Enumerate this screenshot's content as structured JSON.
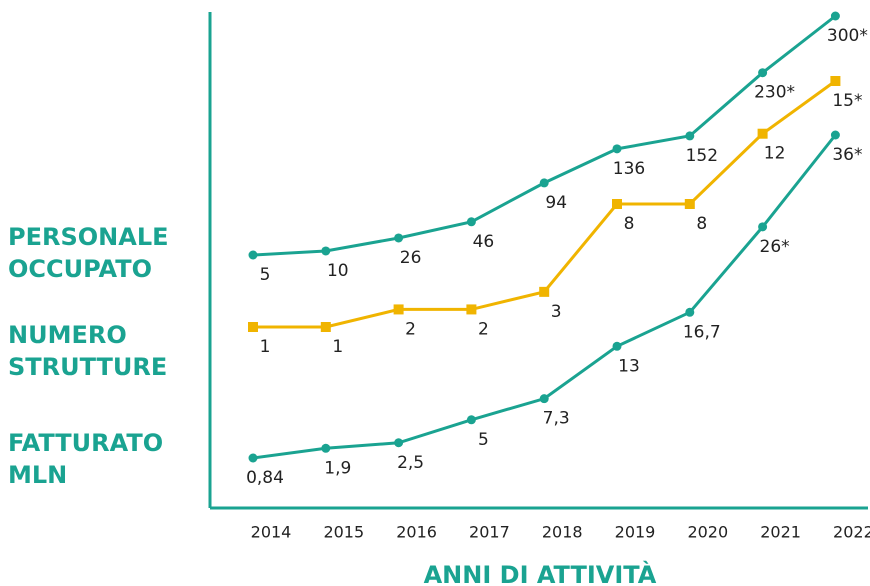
{
  "chart_data": {
    "type": "line",
    "x_label": "ANNI DI ATTIVITÀ",
    "categories": [
      "2014",
      "2015",
      "2016",
      "2017",
      "2018",
      "2019",
      "2020",
      "2021",
      "2022"
    ],
    "series": [
      {
        "name": "PERSONALE OCCUPATO",
        "color": "#1aa391",
        "marker": "circle",
        "values": [
          5,
          10,
          26,
          46,
          94,
          136,
          152,
          230,
          300
        ],
        "value_labels": [
          "5",
          "10",
          "26",
          "46",
          "94",
          "136",
          "152",
          "230*",
          "300*"
        ]
      },
      {
        "name": "NUMERO STRUTTURE",
        "color": "#f0b400",
        "marker": "square",
        "values": [
          1,
          1,
          2,
          2,
          3,
          8,
          8,
          12,
          15
        ],
        "value_labels": [
          "1",
          "1",
          "2",
          "2",
          "3",
          "8",
          "8",
          "12",
          "15*"
        ]
      },
      {
        "name": "FATTURATO MLN",
        "color": "#1aa391",
        "marker": "circle",
        "values": [
          0.84,
          1.9,
          2.5,
          5,
          7.3,
          13,
          16.7,
          26,
          36
        ],
        "value_labels": [
          "0,84",
          "1,9",
          "2,5",
          "5",
          "7,3",
          "13",
          "16,7",
          "26*",
          "36*"
        ]
      }
    ]
  }
}
